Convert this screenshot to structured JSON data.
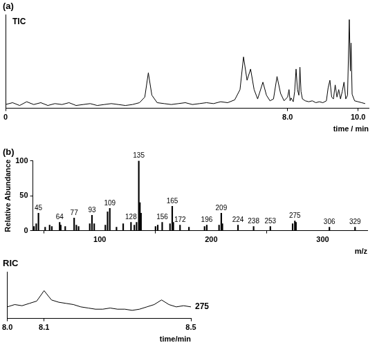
{
  "chart_data": [
    {
      "type": "line",
      "title": "(a)",
      "annotations": [
        "TIC"
      ],
      "x": [
        0.0,
        0.2,
        0.4,
        0.6,
        0.8,
        1.0,
        1.2,
        1.4,
        1.6,
        1.8,
        2.0,
        2.2,
        2.4,
        2.6,
        2.8,
        3.0,
        3.2,
        3.4,
        3.6,
        3.8,
        3.95,
        4.05,
        4.15,
        4.3,
        4.5,
        4.7,
        4.9,
        5.1,
        5.3,
        5.5,
        5.7,
        5.9,
        6.1,
        6.3,
        6.5,
        6.65,
        6.75,
        6.85,
        6.95,
        7.05,
        7.15,
        7.3,
        7.4,
        7.5,
        7.6,
        7.7,
        7.8,
        7.9,
        8.0,
        8.04,
        8.07,
        8.1,
        8.13,
        8.16,
        8.2,
        8.24,
        8.28,
        8.32,
        8.35,
        8.38,
        8.42,
        8.5,
        8.6,
        8.7,
        8.8,
        8.9,
        9.0,
        9.1,
        9.15,
        9.2,
        9.25,
        9.3,
        9.35,
        9.4,
        9.45,
        9.5,
        9.55,
        9.6,
        9.65,
        9.7,
        9.75,
        9.78,
        9.8,
        9.83,
        9.9,
        10.0,
        10.1,
        10.2
      ],
      "values": [
        4,
        6,
        3,
        7,
        4,
        6,
        3,
        5,
        4,
        6,
        3,
        4,
        5,
        3,
        4,
        5,
        4,
        3,
        4,
        6,
        12,
        38,
        14,
        6,
        5,
        4,
        5,
        6,
        4,
        5,
        6,
        5,
        7,
        6,
        9,
        20,
        55,
        30,
        42,
        20,
        10,
        28,
        14,
        8,
        10,
        34,
        16,
        8,
        12,
        20,
        8,
        11,
        9,
        7,
        18,
        42,
        20,
        14,
        44,
        18,
        10,
        8,
        7,
        8,
        6,
        7,
        6,
        8,
        22,
        30,
        12,
        10,
        25,
        12,
        20,
        10,
        18,
        28,
        10,
        14,
        95,
        40,
        70,
        15,
        8,
        7,
        6,
        5
      ],
      "xlim": [
        0,
        10.3
      ],
      "xticks": [
        0,
        {
          "value": 8,
          "label": "8.0"
        },
        {
          "value": 10,
          "label": "10.0"
        }
      ],
      "ylim": [
        0,
        100
      ],
      "x_label": "time / min",
      "tick_labels": "x",
      "grid": false,
      "color": "#000000"
    },
    {
      "type": "bar",
      "title": "(b)",
      "x": [
        41,
        43,
        45,
        51,
        55,
        57,
        64,
        65,
        69,
        77,
        79,
        81,
        91,
        93,
        95,
        105,
        107,
        109,
        115,
        121,
        128,
        131,
        133,
        135,
        136,
        137,
        150,
        152,
        156,
        163,
        165,
        166,
        172,
        180,
        194,
        196,
        207,
        209,
        210,
        224,
        238,
        253,
        273,
        275,
        276,
        306,
        329
      ],
      "values": [
        6,
        10,
        25,
        5,
        8,
        6,
        12,
        8,
        6,
        18,
        8,
        6,
        10,
        22,
        10,
        8,
        27,
        32,
        5,
        10,
        12,
        8,
        12,
        100,
        40,
        25,
        6,
        8,
        12,
        10,
        35,
        12,
        8,
        5,
        6,
        8,
        8,
        25,
        10,
        8,
        6,
        6,
        10,
        14,
        12,
        5,
        5
      ],
      "labeled_peaks": [
        45,
        64,
        77,
        93,
        109,
        128,
        135,
        156,
        165,
        172,
        196,
        209,
        224,
        238,
        253,
        275,
        306,
        329
      ],
      "xlim": [
        40,
        340
      ],
      "xticks": [
        100,
        200,
        300
      ],
      "ylim": [
        0,
        100
      ],
      "yticks": [
        0,
        50,
        100
      ],
      "x_label": "m/z",
      "y_label": "Relative Abundance",
      "grid": false,
      "color": "#000000"
    },
    {
      "type": "line",
      "title": "RIC",
      "annotations": [
        "275"
      ],
      "x": [
        8.0,
        8.02,
        8.04,
        8.06,
        8.08,
        8.1,
        8.12,
        8.14,
        8.16,
        8.18,
        8.2,
        8.22,
        8.24,
        8.26,
        8.28,
        8.3,
        8.32,
        8.34,
        8.36,
        8.38,
        8.4,
        8.42,
        8.44,
        8.46,
        8.48,
        8.5
      ],
      "values": [
        10,
        12,
        11,
        13,
        15,
        24,
        16,
        14,
        13,
        12,
        10,
        9,
        8,
        8,
        9,
        8,
        8,
        7,
        8,
        10,
        12,
        16,
        12,
        10,
        11,
        10
      ],
      "xlim": [
        8.0,
        8.5
      ],
      "xticks": [
        {
          "value": 8,
          "label": "8.0"
        },
        8.1,
        8.5
      ],
      "ylim": [
        0,
        40
      ],
      "x_label": "time/min",
      "tick_labels": "x",
      "grid": false,
      "color": "#000000"
    }
  ]
}
